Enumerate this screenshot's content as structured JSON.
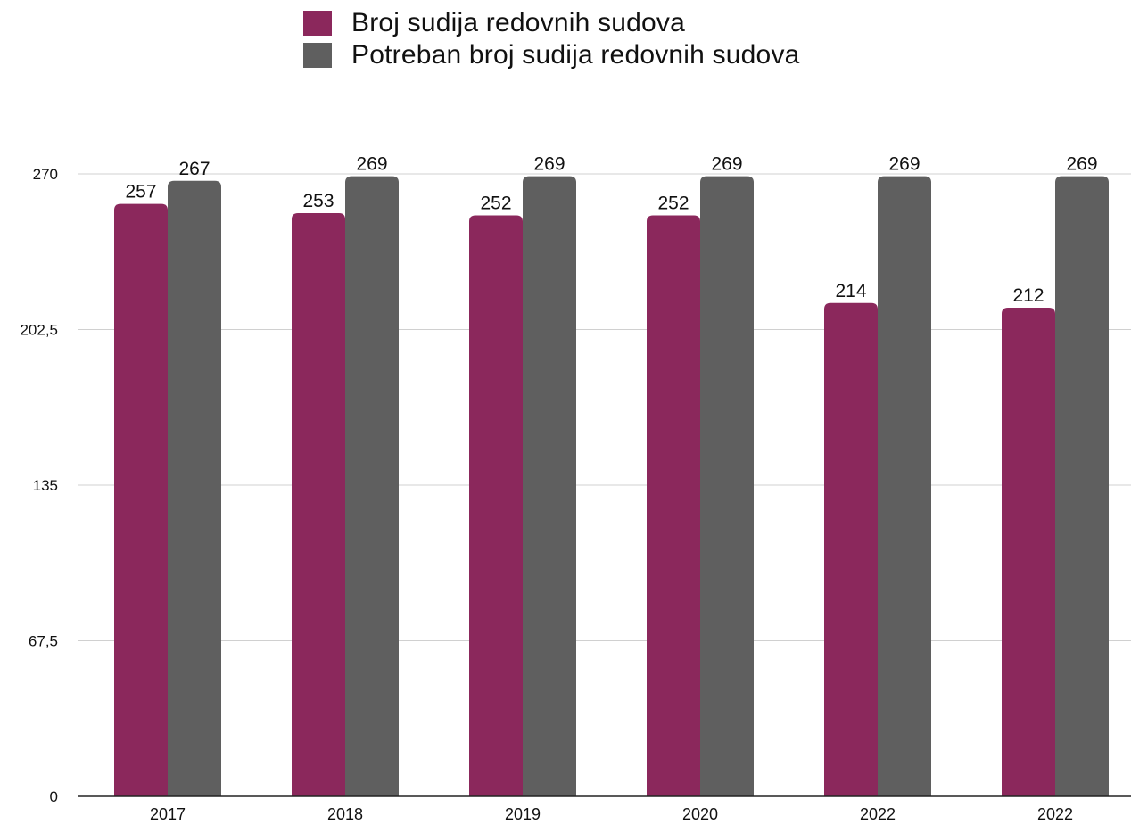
{
  "chart_data": {
    "type": "bar",
    "categories": [
      "2017",
      "2018",
      "2019",
      "2020",
      "2022",
      "2022"
    ],
    "series": [
      {
        "name": "Broj sudija redovnih sudova",
        "color": "#8B285C",
        "values": [
          257,
          253,
          252,
          252,
          214,
          212
        ]
      },
      {
        "name": "Potreban broj sudija redovnih sudova",
        "color": "#5F5F5F",
        "values": [
          267,
          269,
          269,
          269,
          269,
          269
        ]
      }
    ],
    "yticks": [
      0,
      67.5,
      135,
      202.5,
      270
    ],
    "ytick_labels": [
      "0",
      "67,5",
      "135",
      "202,5",
      "270"
    ],
    "ylim": [
      0,
      270
    ],
    "grid": true,
    "legend_position": "top-center"
  }
}
